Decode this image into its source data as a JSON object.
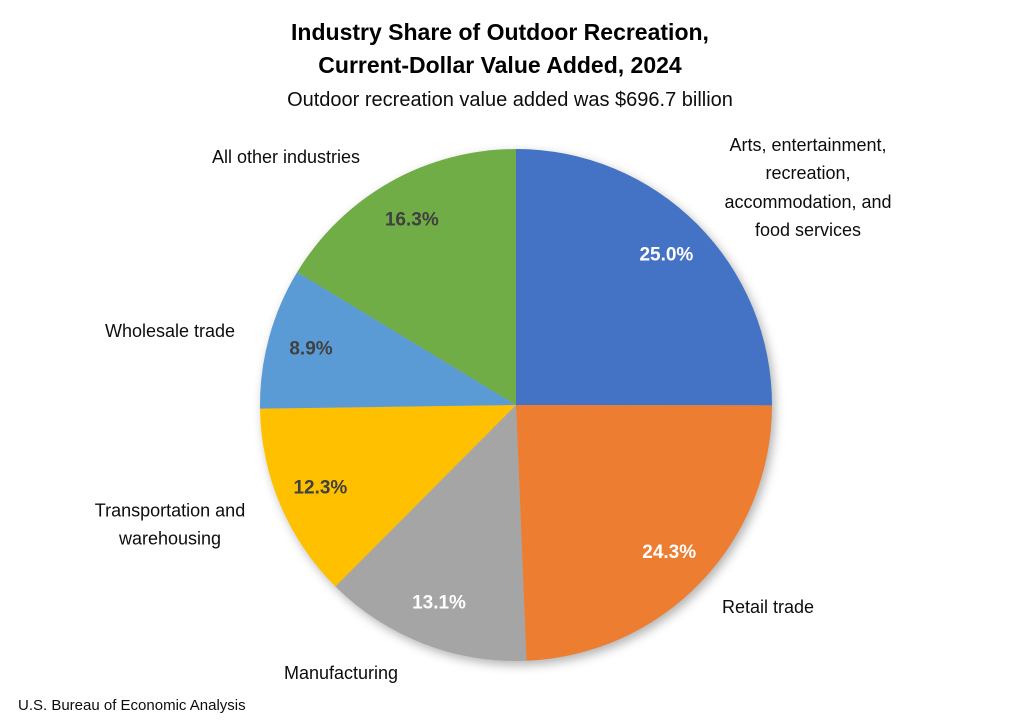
{
  "header": {
    "title_line1": "Industry Share of Outdoor Recreation,",
    "title_line2": "Current-Dollar Value Added, 2024",
    "subtitle": "Outdoor recreation value added was $696.7 billion"
  },
  "footer": {
    "source": "U.S. Bureau of Economic Analysis"
  },
  "chart_data": {
    "type": "pie",
    "title": "Industry Share of Outdoor Recreation, Current-Dollar Value Added, 2024",
    "subtitle": "Outdoor recreation value added was $696.7 billion",
    "unit": "percent of total",
    "direction": "clockwise",
    "start_angle_deg": 0,
    "legend_position": "outside-labels",
    "categories": [
      "Arts, entertainment, recreation, accommodation, and food services",
      "Retail trade",
      "Manufacturing",
      "Transportation and warehousing",
      "Wholesale trade",
      "All other industries"
    ],
    "values": [
      25.0,
      24.3,
      13.1,
      12.3,
      8.9,
      16.3
    ],
    "value_labels": [
      "25.0%",
      "24.3%",
      "13.1%",
      "12.3%",
      "8.9%",
      "16.3%"
    ],
    "slice_colors": [
      "#4472C4",
      "#ED7D31",
      "#A5A5A5",
      "#FFC000",
      "#5B9BD5",
      "#70AD47"
    ],
    "value_label_colors": [
      "#FFFFFF",
      "#FFFFFF",
      "#FFFFFF",
      "#404040",
      "#404040",
      "#404040"
    ]
  }
}
